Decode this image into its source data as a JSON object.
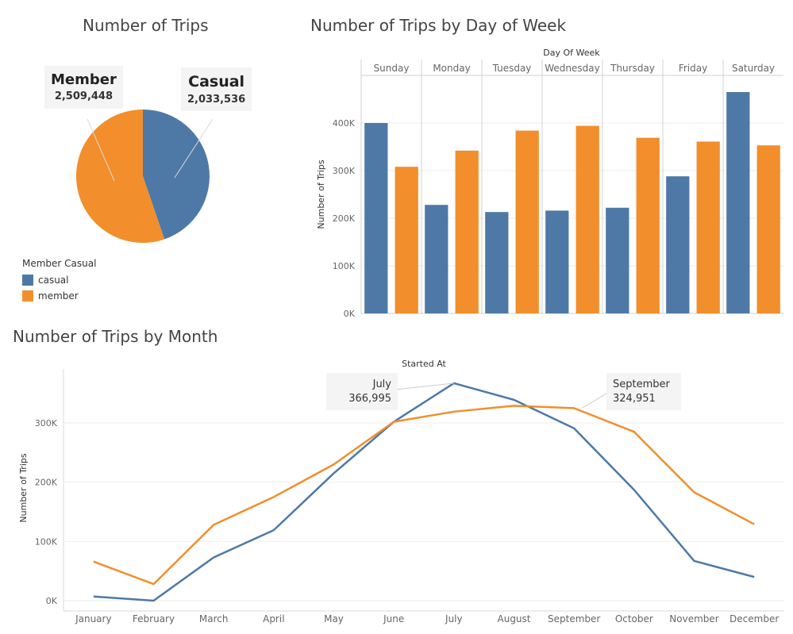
{
  "colors": {
    "casual": "#4e79a7",
    "member": "#f28e2b"
  },
  "pie": {
    "title": "Number of Trips",
    "legend_title": "Member Casual",
    "legend": [
      "casual",
      "member"
    ],
    "callouts": {
      "member": {
        "label": "Member",
        "value": "2,509,448"
      },
      "casual": {
        "label": "Casual",
        "value": "2,033,536"
      }
    }
  },
  "bar": {
    "title": "Number of Trips by Day of Week",
    "xlabel": "Day Of Week",
    "ylabel": "Number of Trips"
  },
  "line": {
    "title": "Number of Trips by Month",
    "xlabel": "Started At",
    "ylabel": "Number of Trips",
    "callouts": {
      "july": {
        "label": "July",
        "value": "366,995"
      },
      "september": {
        "label": "September",
        "value": "324,951"
      }
    }
  },
  "chart_data": [
    {
      "type": "pie",
      "categories": [
        "casual",
        "member"
      ],
      "values": [
        2033536,
        2509448
      ]
    },
    {
      "type": "bar",
      "categories": [
        "Sunday",
        "Monday",
        "Tuesday",
        "Wednesday",
        "Thursday",
        "Friday",
        "Saturday"
      ],
      "series": [
        {
          "name": "casual",
          "values": [
            400000,
            228000,
            213000,
            216000,
            222000,
            288000,
            465000
          ]
        },
        {
          "name": "member",
          "values": [
            308000,
            342000,
            384000,
            394000,
            369000,
            361000,
            353000
          ]
        }
      ],
      "yticks": [
        0,
        100000,
        200000,
        300000,
        400000
      ],
      "ytick_labels": [
        "0K",
        "100K",
        "200K",
        "300K",
        "400K"
      ],
      "ylim": [
        0,
        500000
      ]
    },
    {
      "type": "line",
      "categories": [
        "January",
        "February",
        "March",
        "April",
        "May",
        "June",
        "July",
        "August",
        "September",
        "October",
        "November",
        "December"
      ],
      "series": [
        {
          "name": "casual",
          "values": [
            7000,
            0,
            73000,
            119000,
            215000,
            302000,
            366995,
            339000,
            291000,
            187000,
            67000,
            40000
          ]
        },
        {
          "name": "member",
          "values": [
            66000,
            28000,
            128000,
            175000,
            230000,
            302000,
            319000,
            329000,
            324951,
            285000,
            183000,
            129000
          ]
        }
      ],
      "yticks": [
        0,
        100000,
        200000,
        300000
      ],
      "ytick_labels": [
        "0K",
        "100K",
        "200K",
        "300K"
      ],
      "ylim": [
        0,
        385000
      ]
    }
  ]
}
